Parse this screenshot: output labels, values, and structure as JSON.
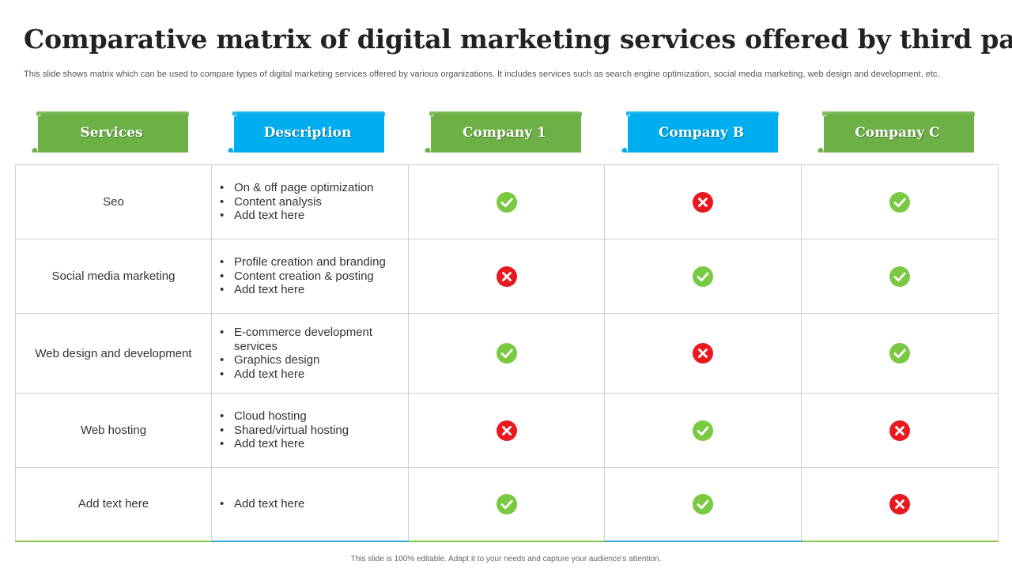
{
  "title": "Comparative matrix of digital marketing services offered by third party",
  "subtitle": "This slide shows matrix which can be used to compare types of digital marketing services offered by various organizations. It includes services such as search engine optimization, social media marketing, web design and development, etc.",
  "colors": {
    "green": "#6db146",
    "blue": "#00aeef",
    "check": "#7ac943",
    "cross": "#e8191f"
  },
  "headers": [
    {
      "label": "Services",
      "color": "green"
    },
    {
      "label": "Description",
      "color": "blue"
    },
    {
      "label": "Company 1",
      "color": "green"
    },
    {
      "label": "Company B",
      "color": "blue"
    },
    {
      "label": "Company C",
      "color": "green"
    }
  ],
  "rows": [
    {
      "service": "Seo",
      "description": [
        "On & off  page optimization",
        "Content analysis",
        "Add text here"
      ],
      "marks": [
        "check",
        "cross",
        "check"
      ]
    },
    {
      "service": "Social media marketing",
      "description": [
        "Profile creation and branding",
        "Content creation & posting",
        "Add text here"
      ],
      "marks": [
        "cross",
        "check",
        "check"
      ]
    },
    {
      "service": "Web design and development",
      "description": [
        "E-commerce development services",
        "Graphics design",
        "Add text here"
      ],
      "marks": [
        "check",
        "cross",
        "check"
      ]
    },
    {
      "service": "Web hosting",
      "description": [
        "Cloud hosting",
        "Shared/virtual hosting",
        "Add text here"
      ],
      "marks": [
        "cross",
        "check",
        "cross"
      ]
    },
    {
      "service": "Add text here",
      "description": [
        "Add text here"
      ],
      "marks": [
        "check",
        "check",
        "cross"
      ]
    }
  ],
  "mark_icons": {
    "check": "check-circle-icon",
    "cross": "cross-circle-icon"
  },
  "footer": "This slide is 100% editable. Adapt it to your needs and capture your audience's attention."
}
